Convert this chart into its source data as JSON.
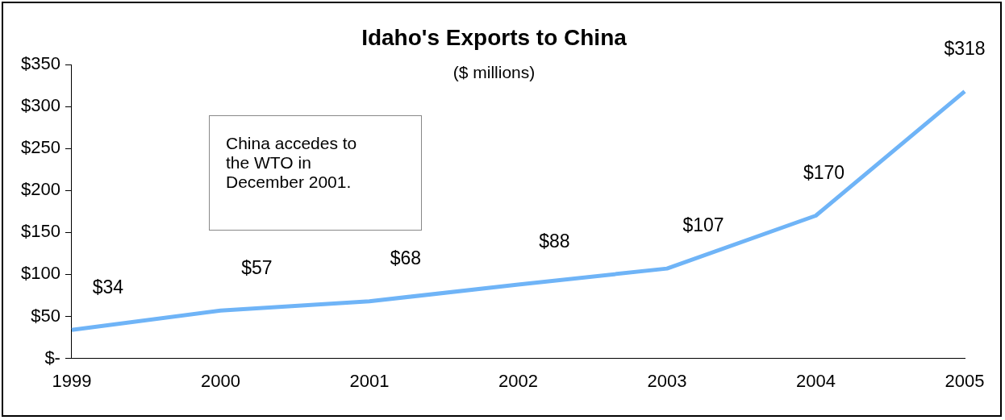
{
  "chart_data": {
    "type": "line",
    "title": "Idaho's Exports to China",
    "subtitle": "($ millions)",
    "categories": [
      "1999",
      "2000",
      "2001",
      "2002",
      "2003",
      "2004",
      "2005"
    ],
    "values": [
      34,
      57,
      68,
      88,
      107,
      170,
      318
    ],
    "value_labels": [
      "$34",
      "$57",
      "$68",
      "$88",
      "$107",
      "$170",
      "$318"
    ],
    "color": "#6fb4f7",
    "ylim": [
      0,
      350
    ],
    "yticks": [
      {
        "value": 0,
        "label": "$-"
      },
      {
        "value": 50,
        "label": "$50"
      },
      {
        "value": 100,
        "label": "$100"
      },
      {
        "value": 150,
        "label": "$150"
      },
      {
        "value": 200,
        "label": "$200"
      },
      {
        "value": 250,
        "label": "$250"
      },
      {
        "value": 300,
        "label": "$300"
      },
      {
        "value": 350,
        "label": "$350"
      }
    ],
    "annotations": [
      "China accedes to the WTO in December 2001."
    ],
    "grid": false,
    "legend": false,
    "marker": "none",
    "line_style": "solid"
  }
}
